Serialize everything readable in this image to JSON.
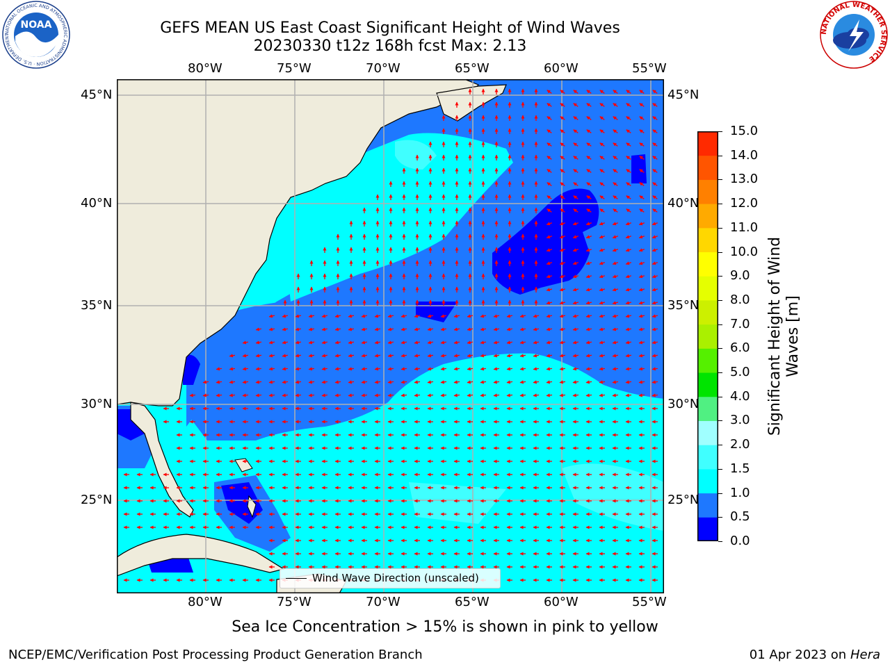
{
  "title": {
    "line1": "GEFS MEAN US East Coast Significant Height of Wind Waves",
    "line2": "20230330 t12z 168h fcst   Max: 2.13"
  },
  "map": {
    "top_lon_labels": [
      "80°W",
      "75°W",
      "70°W",
      "65°W",
      "60°W",
      "55°W"
    ],
    "bottom_lon_labels": [
      "80°W",
      "75°W",
      "70°W",
      "65°W",
      "60°W",
      "55°W"
    ],
    "left_lat_labels": [
      "45°N",
      "40°N",
      "35°N",
      "30°N",
      "25°N"
    ],
    "right_lat_labels": [
      "45°N",
      "40°N",
      "35°N",
      "30°N",
      "25°N"
    ],
    "legend_label": "Wind Wave Direction (unscaled)",
    "max_value": 2.13
  },
  "colorbar": {
    "label_line1": "Significant Height of Wind",
    "label_line2": "Waves [m]",
    "ticks": [
      "15.0",
      "14.0",
      "13.0",
      "12.0",
      "11.0",
      "10.0",
      "9.0",
      "8.0",
      "7.0",
      "6.0",
      "5.0",
      "4.0",
      "3.0",
      "2.0",
      "1.5",
      "1.0",
      "0.5",
      "0.0"
    ],
    "colors_bottom_to_top": [
      "#0000ff",
      "#1e78ff",
      "#00ffff",
      "#40ffff",
      "#a0ffff",
      "#50f082",
      "#00e400",
      "#55f000",
      "#aaf000",
      "#ccf000",
      "#e5ff00",
      "#ffff00",
      "#ffd700",
      "#ffaa00",
      "#ff8000",
      "#ff5500",
      "#ff2a00"
    ]
  },
  "caption": "Sea Ice Concentration > 15% is shown in pink to yellow",
  "footer": {
    "left": "NCEP/EMC/Verification Post Processing Product Generation Branch",
    "right_date": "01 Apr 2023 on ",
    "right_host": "Hera"
  },
  "logos": {
    "left": "NOAA",
    "left_ring": "NATIONAL OCEANIC AND ATMOSPHERIC ADMINISTRATION · U.S. DEPARTMENT OF COMMERCE",
    "right_ring": "NATIONAL WEATHER SERVICE"
  },
  "colors": {
    "land": "#efecdc",
    "arrow": "#ff0000",
    "wave_0": "#0000ff",
    "wave_05": "#1e78ff",
    "wave_1": "#00ffff",
    "wave_15": "#40ffff"
  }
}
